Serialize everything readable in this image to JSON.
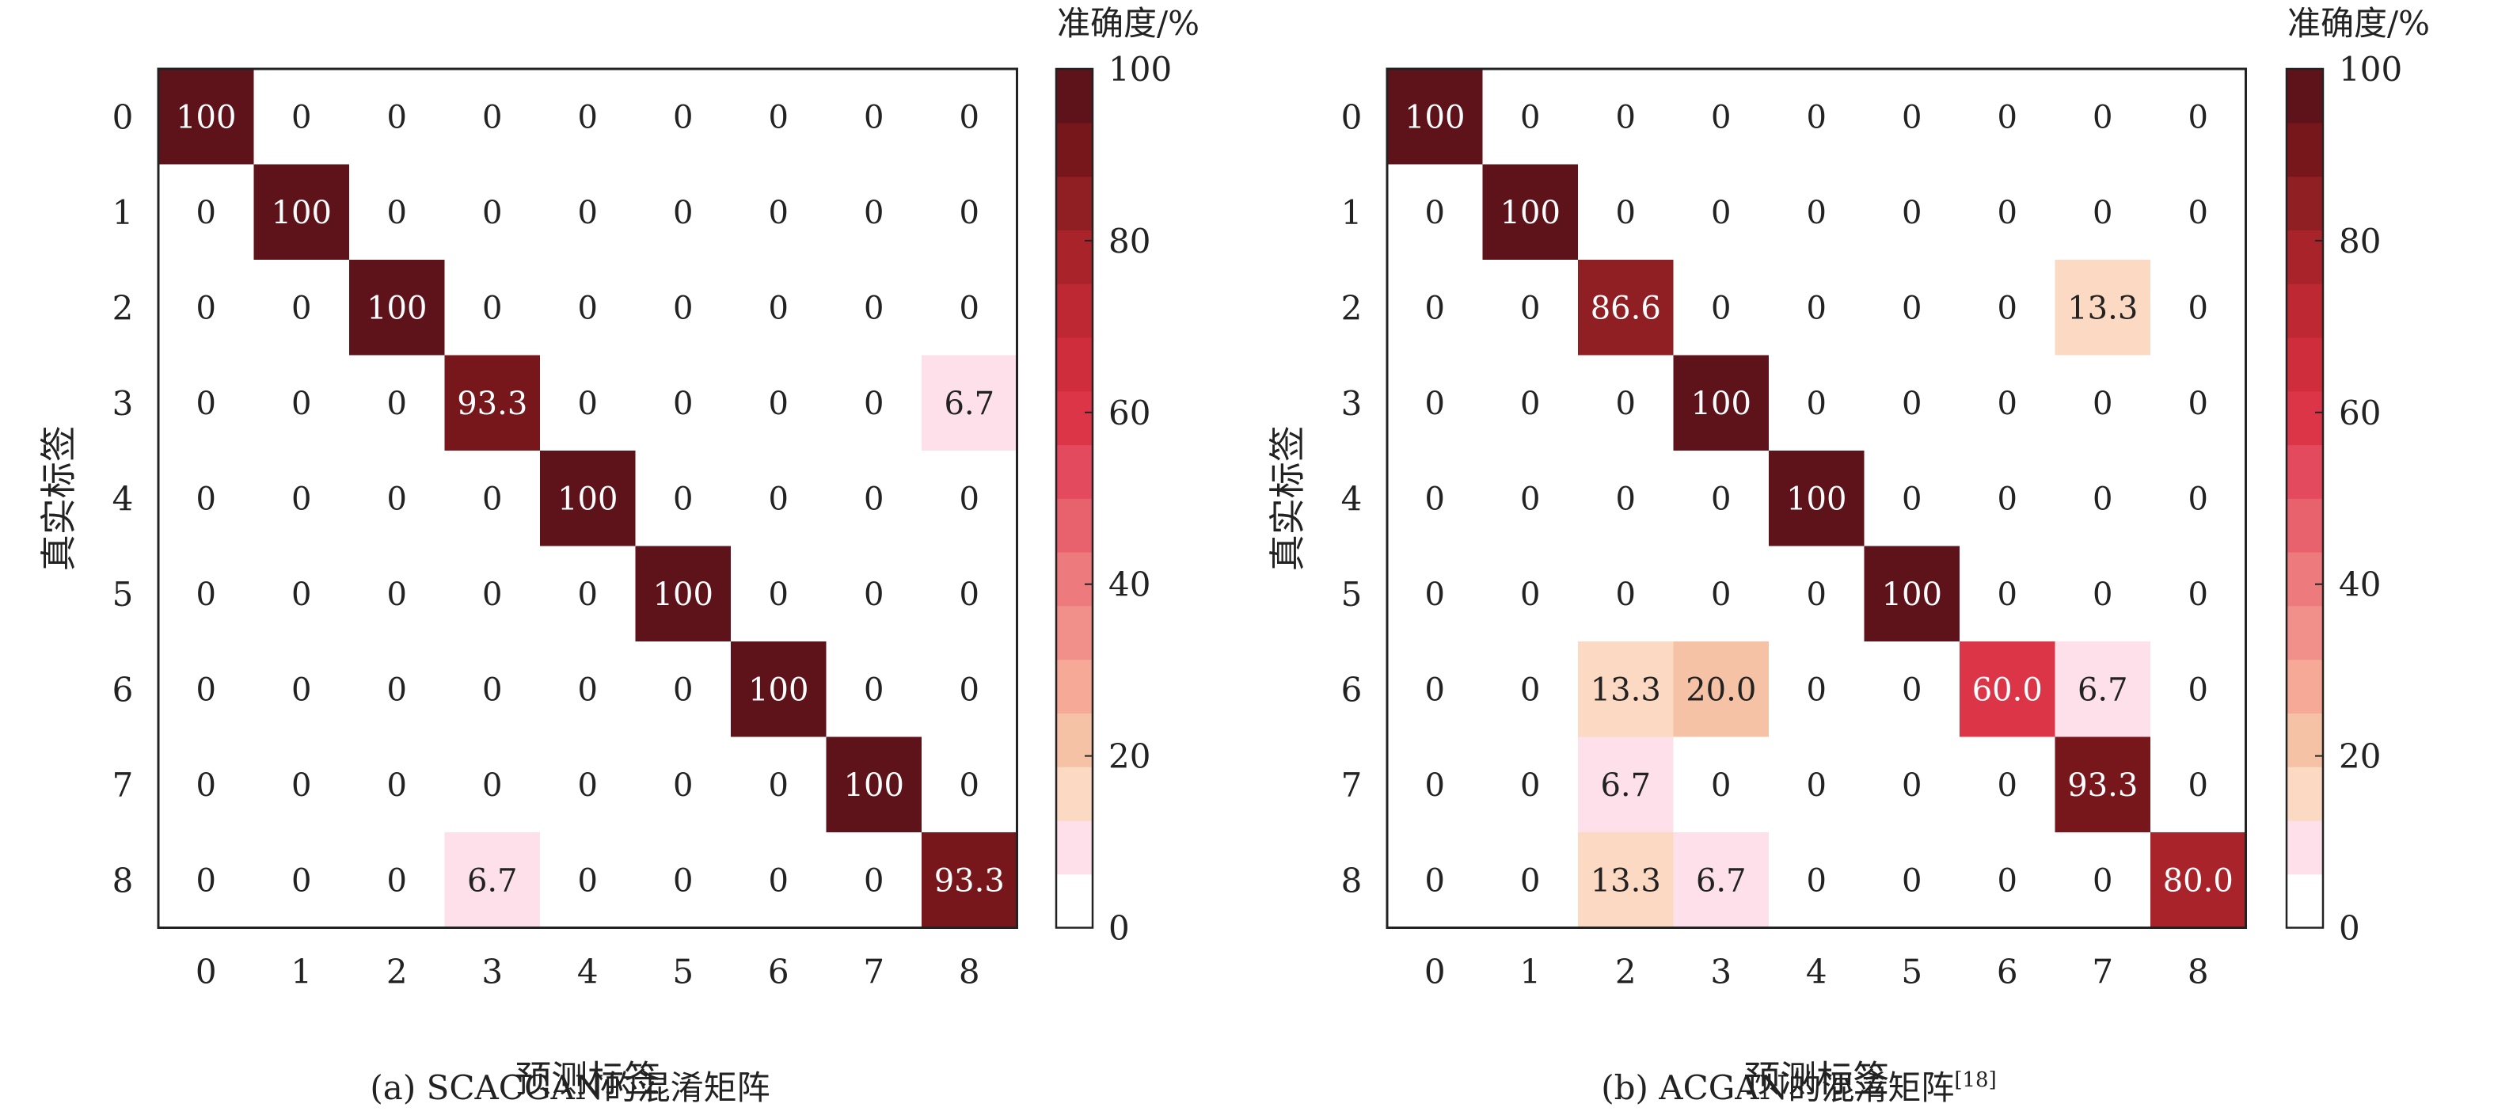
{
  "chart_data": [
    {
      "type": "heatmap",
      "xlabel": "预测标签",
      "ylabel": "真实标签",
      "caption": "(a) SCACGAN的混淆矩阵",
      "colorbar_title": "准确度/%",
      "colorbar_ticks": [
        "0",
        "20",
        "40",
        "60",
        "80",
        "100"
      ],
      "vmin": 0,
      "vmax": 100,
      "x_ticks": [
        "0",
        "1",
        "2",
        "3",
        "4",
        "5",
        "6",
        "7",
        "8"
      ],
      "y_ticks": [
        "0",
        "1",
        "2",
        "3",
        "4",
        "5",
        "6",
        "7",
        "8"
      ],
      "matrix": [
        [
          "100",
          "0",
          "0",
          "0",
          "0",
          "0",
          "0",
          "0",
          "0"
        ],
        [
          "0",
          "100",
          "0",
          "0",
          "0",
          "0",
          "0",
          "0",
          "0"
        ],
        [
          "0",
          "0",
          "100",
          "0",
          "0",
          "0",
          "0",
          "0",
          "0"
        ],
        [
          "0",
          "0",
          "0",
          "93.3",
          "0",
          "0",
          "0",
          "0",
          "6.7"
        ],
        [
          "0",
          "0",
          "0",
          "0",
          "100",
          "0",
          "0",
          "0",
          "0"
        ],
        [
          "0",
          "0",
          "0",
          "0",
          "0",
          "100",
          "0",
          "0",
          "0"
        ],
        [
          "0",
          "0",
          "0",
          "0",
          "0",
          "0",
          "100",
          "0",
          "0"
        ],
        [
          "0",
          "0",
          "0",
          "0",
          "0",
          "0",
          "0",
          "100",
          "0"
        ],
        [
          "0",
          "0",
          "0",
          "6.7",
          "0",
          "0",
          "0",
          "0",
          "93.3"
        ]
      ]
    },
    {
      "type": "heatmap",
      "xlabel": "预测标签",
      "ylabel": "真实标签",
      "caption": "(b) ACGAN的混淆矩阵",
      "caption_ref": "[18]",
      "colorbar_title": "准确度/%",
      "colorbar_ticks": [
        "0",
        "20",
        "40",
        "60",
        "80",
        "100"
      ],
      "vmin": 0,
      "vmax": 100,
      "x_ticks": [
        "0",
        "1",
        "2",
        "3",
        "4",
        "5",
        "6",
        "7",
        "8"
      ],
      "y_ticks": [
        "0",
        "1",
        "2",
        "3",
        "4",
        "5",
        "6",
        "7",
        "8"
      ],
      "matrix": [
        [
          "100",
          "0",
          "0",
          "0",
          "0",
          "0",
          "0",
          "0",
          "0"
        ],
        [
          "0",
          "100",
          "0",
          "0",
          "0",
          "0",
          "0",
          "0",
          "0"
        ],
        [
          "0",
          "0",
          "86.6",
          "0",
          "0",
          "0",
          "0",
          "13.3",
          "0"
        ],
        [
          "0",
          "0",
          "0",
          "100",
          "0",
          "0",
          "0",
          "0",
          "0"
        ],
        [
          "0",
          "0",
          "0",
          "0",
          "100",
          "0",
          "0",
          "0",
          "0"
        ],
        [
          "0",
          "0",
          "0",
          "0",
          "0",
          "100",
          "0",
          "0",
          "0"
        ],
        [
          "0",
          "0",
          "13.3",
          "20.0",
          "0",
          "0",
          "60.0",
          "6.7",
          "0"
        ],
        [
          "0",
          "0",
          "6.7",
          "0",
          "0",
          "0",
          "0",
          "93.3",
          "0"
        ],
        [
          "0",
          "0",
          "13.3",
          "6.7",
          "0",
          "0",
          "0",
          "0",
          "80.0"
        ]
      ]
    }
  ],
  "colorscale": [
    "#ffffff",
    "#fde0ea",
    "#fbd9c2",
    "#f5c2a6",
    "#f5a996",
    "#f1908a",
    "#ed7a7c",
    "#e8626e",
    "#e34a5e",
    "#dc3548",
    "#cf2c3c",
    "#bd2832",
    "#a9242a",
    "#8f1f22",
    "#77171c",
    "#5e121a"
  ]
}
